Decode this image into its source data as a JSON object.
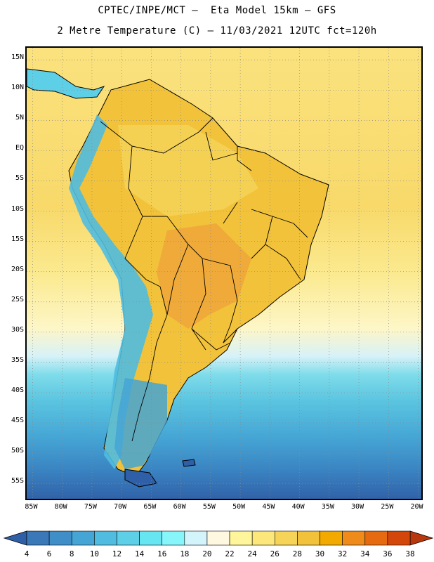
{
  "title": {
    "line1": "CPTEC/INPE/MCT –  Eta Model 15km – GFS",
    "line2": "2 Metre Temperature (C) – 11/03/2021 12UTC fct=120h"
  },
  "map": {
    "projection": "lat-lon",
    "lon_range": [
      -86,
      -19
    ],
    "lat_range": [
      -58,
      17
    ],
    "lat_labels": [
      "15N",
      "10N",
      "5N",
      "EQ",
      "5S",
      "10S",
      "15S",
      "20S",
      "25S",
      "30S",
      "35S",
      "40S",
      "45S",
      "50S",
      "55S"
    ],
    "lon_labels": [
      "85W",
      "80W",
      "75W",
      "70W",
      "65W",
      "60W",
      "55W",
      "50W",
      "45W",
      "40W",
      "35W",
      "30W",
      "25W",
      "20W"
    ]
  },
  "colorbar": {
    "levels": [
      "4",
      "6",
      "8",
      "10",
      "12",
      "14",
      "16",
      "18",
      "20",
      "22",
      "24",
      "26",
      "28",
      "30",
      "32",
      "34",
      "36",
      "38"
    ],
    "colors": [
      "#2f5fa6",
      "#3a78b8",
      "#3f8ec8",
      "#45a5d5",
      "#50bde0",
      "#5dd0e8",
      "#66e6f0",
      "#86f6fb",
      "#d4f4fb",
      "#fff8e1",
      "#fff59a",
      "#fbe77a",
      "#f6d458",
      "#f2c23a",
      "#f2a900",
      "#ee8b1b",
      "#e56a10",
      "#d4470a",
      "#b8370c"
    ]
  }
}
